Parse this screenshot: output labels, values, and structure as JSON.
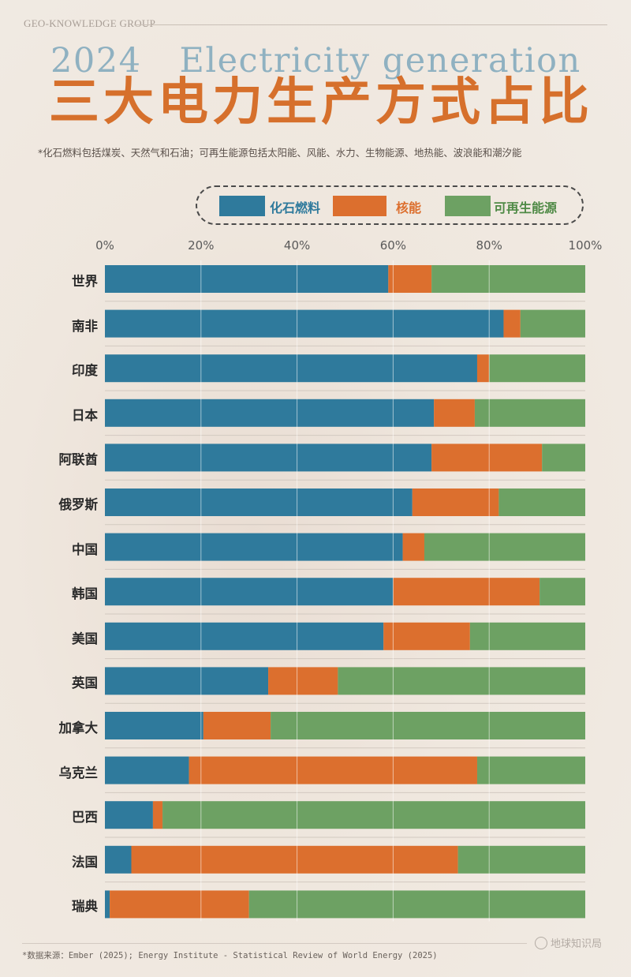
{
  "header": {
    "brand": "GEO-KNOWLEDGE GROUP",
    "title_en_year": "2024",
    "title_en_text": "Electricity generation",
    "title_cn": "三大电力生产方式占比",
    "subtitle": "*化石燃料包括煤炭、天然气和石油；可再生能源包括太阳能、风能、水力、生物能源、地热能、波浪能和潮汐能"
  },
  "colors": {
    "fossil": "#2f7a9c",
    "nuclear": "#dc6f2e",
    "renewable": "#6da163",
    "legend_fossil_text": "#2f7a9c",
    "legend_nuclear_text": "#dc6f2e",
    "legend_renewable_text": "#4f8a46"
  },
  "legend": {
    "fossil": "化石燃料",
    "nuclear": "核能",
    "renewable": "可再生能源"
  },
  "chart_data": {
    "type": "bar",
    "orientation": "horizontal-stacked-100",
    "categories": [
      "世界",
      "南非",
      "印度",
      "日本",
      "阿联酋",
      "俄罗斯",
      "中国",
      "韩国",
      "美国",
      "英国",
      "加拿大",
      "乌克兰",
      "巴西",
      "法国",
      "瑞典"
    ],
    "series": [
      {
        "name": "化石燃料",
        "values": [
          59,
          83,
          77.5,
          68.5,
          68,
          64,
          62,
          60,
          58,
          34,
          20.5,
          17.5,
          10,
          5.5,
          1
        ]
      },
      {
        "name": "核能",
        "values": [
          9,
          3.5,
          2.5,
          8.5,
          23,
          18,
          4.5,
          30.5,
          18,
          14.5,
          14,
          60,
          2,
          68,
          29
        ]
      },
      {
        "name": "可再生能源",
        "values": [
          32,
          13.5,
          20,
          23,
          9,
          18,
          33.5,
          9.5,
          24,
          51.5,
          65.5,
          22.5,
          88,
          26.5,
          70
        ]
      }
    ],
    "xticks": [
      "0%",
      "20%",
      "40%",
      "60%",
      "80%",
      "100%"
    ],
    "xlim": [
      0,
      100
    ],
    "grid": true,
    "legend_position": "top"
  },
  "footer": {
    "source": "*数据来源：Ember (2025); Energy Institute - Statistical Review of World Energy (2025)",
    "brand": "地球知识局"
  }
}
